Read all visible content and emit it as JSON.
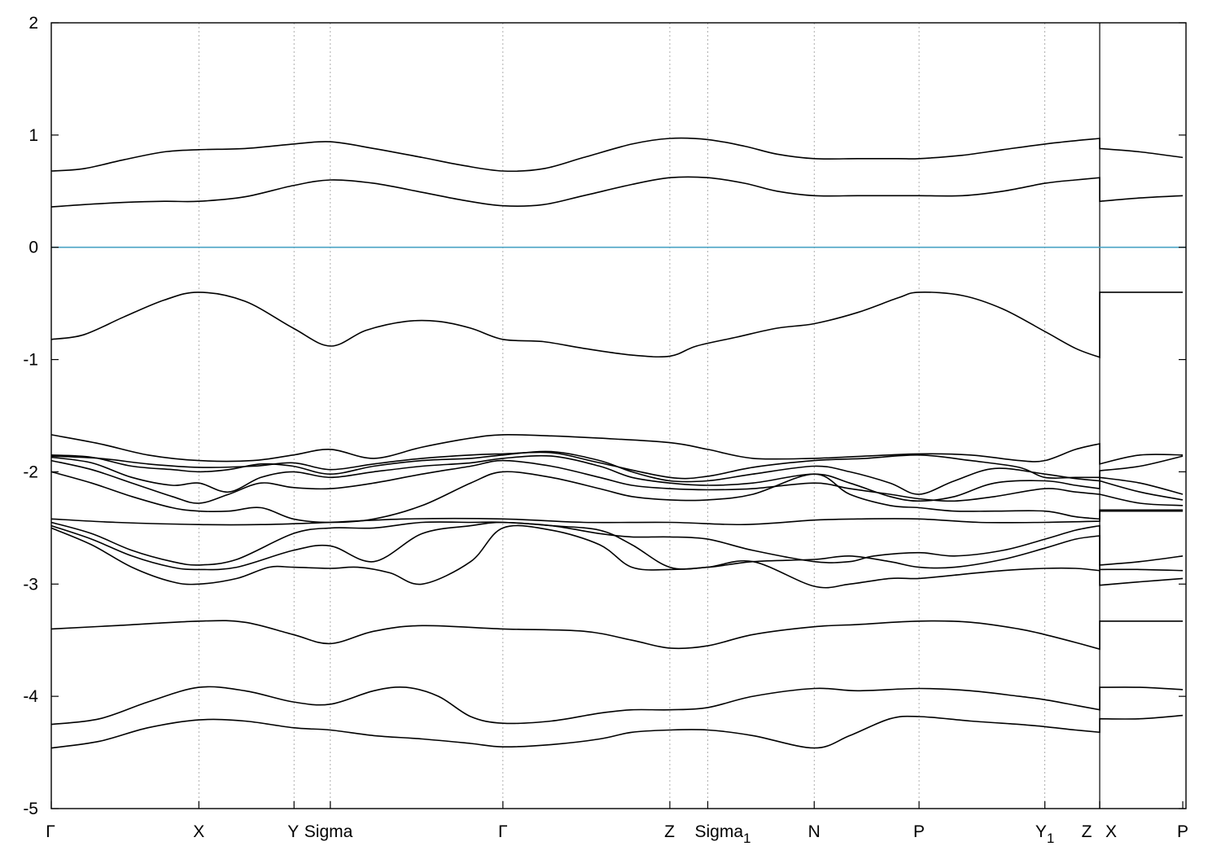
{
  "chart_data": {
    "type": "line",
    "ylim": [
      -5,
      2
    ],
    "yticks": [
      2,
      1,
      0,
      -1,
      -2,
      -3,
      -4,
      -5
    ],
    "xlim": [
      0,
      1407
    ],
    "kpoints": [
      {
        "x": 0,
        "label": "Γ"
      },
      {
        "x": 183,
        "label": "X"
      },
      {
        "x": 301,
        "label": "Y"
      },
      {
        "x": 346,
        "label": "Sigma"
      },
      {
        "x": 560,
        "label": "Γ"
      },
      {
        "x": 767,
        "label": "Z"
      },
      {
        "x": 814,
        "label": "Sigma",
        "sub": "1"
      },
      {
        "x": 946,
        "label": "N"
      },
      {
        "x": 1076,
        "label": "P"
      },
      {
        "x": 1232,
        "label": "Y",
        "sub": "1"
      },
      {
        "x": 1300,
        "label": "Z"
      },
      {
        "x": 1300,
        "label": "X"
      },
      {
        "x": 1403,
        "label": "P"
      }
    ],
    "fermi_level": 0,
    "series": [
      {
        "x": [
          0,
          40,
          90,
          140,
          183,
          240,
          300,
          346,
          400,
          460,
          510,
          560,
          610,
          660,
          720,
          767,
          814,
          860,
          900,
          946,
          1000,
          1050,
          1076,
          1130,
          1180,
          1232,
          1270,
          1300,
          1300,
          1350,
          1403
        ],
        "y": [
          0.68,
          0.7,
          0.78,
          0.85,
          0.87,
          0.88,
          0.92,
          0.94,
          0.88,
          0.8,
          0.73,
          0.68,
          0.7,
          0.8,
          0.92,
          0.97,
          0.96,
          0.9,
          0.83,
          0.79,
          0.79,
          0.79,
          0.79,
          0.82,
          0.87,
          0.92,
          0.95,
          0.97,
          0.88,
          0.85,
          0.8
        ]
      },
      {
        "x": [
          0,
          40,
          90,
          140,
          183,
          240,
          300,
          346,
          400,
          460,
          510,
          560,
          610,
          660,
          720,
          767,
          814,
          860,
          900,
          946,
          1000,
          1050,
          1076,
          1130,
          1180,
          1232,
          1270,
          1300,
          1300,
          1350,
          1403
        ],
        "y": [
          0.36,
          0.38,
          0.4,
          0.41,
          0.41,
          0.45,
          0.55,
          0.6,
          0.57,
          0.49,
          0.42,
          0.37,
          0.38,
          0.46,
          0.56,
          0.62,
          0.62,
          0.57,
          0.5,
          0.46,
          0.46,
          0.46,
          0.46,
          0.46,
          0.5,
          0.57,
          0.6,
          0.62,
          0.41,
          0.44,
          0.46
        ]
      },
      {
        "x": [
          0,
          40,
          90,
          140,
          183,
          240,
          300,
          346,
          390,
          440,
          480,
          520,
          560,
          610,
          660,
          720,
          767,
          800,
          850,
          900,
          946,
          1000,
          1050,
          1076,
          1130,
          1180,
          1232,
          1270,
          1300,
          1300,
          1350,
          1403
        ],
        "y": [
          -0.82,
          -0.78,
          -0.62,
          -0.47,
          -0.4,
          -0.48,
          -0.72,
          -0.88,
          -0.74,
          -0.66,
          -0.66,
          -0.72,
          -0.82,
          -0.84,
          -0.9,
          -0.96,
          -0.97,
          -0.88,
          -0.8,
          -0.72,
          -0.68,
          -0.58,
          -0.45,
          -0.4,
          -0.43,
          -0.55,
          -0.75,
          -0.9,
          -0.98,
          -0.4,
          -0.4,
          -0.4
        ]
      },
      {
        "x": [
          0,
          60,
          120,
          183,
          250,
          300,
          346,
          400,
          460,
          520,
          560,
          620,
          680,
          767,
          814,
          870,
          946,
          1010,
          1076,
          1140,
          1200,
          1232,
          1270,
          1300,
          1300,
          1350,
          1403
        ],
        "y": [
          -1.67,
          -1.75,
          -1.85,
          -1.9,
          -1.9,
          -1.85,
          -1.8,
          -1.88,
          -1.78,
          -1.7,
          -1.67,
          -1.68,
          -1.7,
          -1.74,
          -1.8,
          -1.88,
          -1.88,
          -1.86,
          -1.84,
          -1.85,
          -1.9,
          -1.9,
          -1.8,
          -1.75,
          -1.93,
          -1.85,
          -1.85
        ]
      },
      {
        "x": [
          0,
          60,
          120,
          183,
          250,
          300,
          346,
          400,
          460,
          520,
          560,
          620,
          680,
          767,
          814,
          870,
          946,
          1010,
          1076,
          1140,
          1200,
          1232,
          1270,
          1300,
          1300,
          1350,
          1403
        ],
        "y": [
          -1.86,
          -1.88,
          -1.93,
          -1.96,
          -1.95,
          -1.92,
          -1.98,
          -1.93,
          -1.88,
          -1.85,
          -1.84,
          -1.83,
          -1.92,
          -2.05,
          -2.04,
          -1.96,
          -1.9,
          -1.88,
          -1.85,
          -1.9,
          -1.96,
          -2.05,
          -2.05,
          -2.05,
          -1.99,
          -1.95,
          -1.86
        ]
      },
      {
        "x": [
          0,
          50,
          100,
          150,
          183,
          220,
          260,
          300,
          346,
          400,
          460,
          520,
          560,
          620,
          680,
          720,
          767,
          814,
          870,
          946,
          990,
          1040,
          1076,
          1120,
          1170,
          1232,
          1270,
          1300,
          1300,
          1350,
          1403
        ],
        "y": [
          -1.85,
          -1.87,
          -1.95,
          -1.98,
          -2.0,
          -1.98,
          -1.93,
          -1.95,
          -2.02,
          -1.95,
          -1.9,
          -1.88,
          -1.85,
          -1.82,
          -1.9,
          -2.0,
          -2.08,
          -2.08,
          -2.02,
          -1.95,
          -2.0,
          -2.1,
          -2.2,
          -2.08,
          -1.97,
          -2.02,
          -2.06,
          -2.08,
          -2.05,
          -2.1,
          -2.2
        ]
      },
      {
        "x": [
          0,
          50,
          100,
          150,
          183,
          220,
          260,
          300,
          346,
          400,
          460,
          520,
          560,
          620,
          680,
          720,
          767,
          814,
          870,
          946,
          990,
          1040,
          1076,
          1120,
          1170,
          1232,
          1270,
          1300,
          1300,
          1350,
          1403
        ],
        "y": [
          -1.87,
          -1.92,
          -2.05,
          -2.12,
          -2.1,
          -2.18,
          -2.05,
          -2.0,
          -2.05,
          -2.0,
          -1.95,
          -1.92,
          -1.88,
          -1.86,
          -1.95,
          -2.05,
          -2.1,
          -2.12,
          -2.1,
          -2.02,
          -2.1,
          -2.22,
          -2.26,
          -2.22,
          -2.1,
          -2.08,
          -2.12,
          -2.15,
          -2.08,
          -2.18,
          -2.25
        ]
      },
      {
        "x": [
          0,
          50,
          100,
          150,
          183,
          220,
          260,
          300,
          346,
          400,
          460,
          520,
          560,
          620,
          680,
          720,
          767,
          814,
          870,
          946,
          990,
          1040,
          1076,
          1120,
          1170,
          1232,
          1270,
          1300,
          1300,
          1350,
          1403
        ],
        "y": [
          -1.9,
          -1.98,
          -2.1,
          -2.22,
          -2.28,
          -2.2,
          -2.1,
          -2.14,
          -2.15,
          -2.1,
          -2.02,
          -1.95,
          -1.9,
          -1.95,
          -2.05,
          -2.12,
          -2.15,
          -2.16,
          -2.15,
          -2.1,
          -2.15,
          -2.2,
          -2.24,
          -2.26,
          -2.22,
          -2.15,
          -2.18,
          -2.2,
          -2.2,
          -2.28,
          -2.3
        ]
      },
      {
        "x": [
          0,
          50,
          100,
          150,
          183,
          220,
          260,
          300,
          346,
          400,
          460,
          520,
          560,
          620,
          680,
          720,
          767,
          814,
          870,
          946,
          990,
          1040,
          1076,
          1120,
          1170,
          1232,
          1270,
          1300,
          1300,
          1350,
          1403
        ],
        "y": [
          -2.0,
          -2.1,
          -2.22,
          -2.32,
          -2.35,
          -2.35,
          -2.32,
          -2.42,
          -2.45,
          -2.42,
          -2.3,
          -2.1,
          -2.0,
          -2.05,
          -2.15,
          -2.22,
          -2.25,
          -2.25,
          -2.2,
          -2.02,
          -2.2,
          -2.3,
          -2.32,
          -2.35,
          -2.35,
          -2.35,
          -2.4,
          -2.42,
          -2.35,
          -2.35,
          -2.35
        ]
      },
      {
        "x": [
          0,
          80,
          183,
          260,
          346,
          440,
          560,
          660,
          767,
          860,
          946,
          1000,
          1076,
          1150,
          1232,
          1300,
          1300,
          1350,
          1403
        ],
        "y": [
          -2.42,
          -2.45,
          -2.47,
          -2.47,
          -2.45,
          -2.42,
          -2.42,
          -2.45,
          -2.45,
          -2.47,
          -2.43,
          -2.42,
          -2.42,
          -2.45,
          -2.45,
          -2.44,
          -2.34,
          -2.34,
          -2.34
        ]
      },
      {
        "x": [
          0,
          50,
          100,
          150,
          183,
          230,
          300,
          346,
          400,
          460,
          520,
          560,
          620,
          680,
          720,
          767,
          814,
          870,
          946,
          990,
          1020,
          1076,
          1120,
          1180,
          1232,
          1270,
          1300,
          1300,
          1350,
          1403
        ],
        "y": [
          -2.45,
          -2.55,
          -2.7,
          -2.8,
          -2.83,
          -2.78,
          -2.55,
          -2.5,
          -2.5,
          -2.45,
          -2.45,
          -2.45,
          -2.48,
          -2.55,
          -2.58,
          -2.58,
          -2.6,
          -2.7,
          -2.8,
          -2.8,
          -2.75,
          -2.72,
          -2.75,
          -2.7,
          -2.6,
          -2.52,
          -2.48,
          -2.83,
          -2.8,
          -2.75
        ]
      },
      {
        "x": [
          0,
          50,
          100,
          150,
          183,
          230,
          300,
          346,
          400,
          460,
          520,
          560,
          620,
          680,
          720,
          767,
          814,
          870,
          946,
          990,
          1040,
          1076,
          1120,
          1180,
          1232,
          1270,
          1300,
          1300,
          1350,
          1403
        ],
        "y": [
          -2.48,
          -2.6,
          -2.75,
          -2.85,
          -2.87,
          -2.85,
          -2.7,
          -2.66,
          -2.8,
          -2.55,
          -2.48,
          -2.45,
          -2.48,
          -2.52,
          -2.65,
          -2.85,
          -2.85,
          -2.8,
          -2.78,
          -2.75,
          -2.8,
          -2.85,
          -2.85,
          -2.78,
          -2.68,
          -2.6,
          -2.57,
          -2.87,
          -2.87,
          -2.88
        ]
      },
      {
        "x": [
          0,
          50,
          100,
          150,
          183,
          230,
          270,
          300,
          346,
          380,
          420,
          460,
          520,
          560,
          620,
          680,
          720,
          767,
          814,
          870,
          946,
          990,
          1040,
          1076,
          1120,
          1180,
          1232,
          1270,
          1300,
          1300,
          1350,
          1403
        ],
        "y": [
          -2.5,
          -2.65,
          -2.85,
          -2.98,
          -3.0,
          -2.95,
          -2.85,
          -2.85,
          -2.86,
          -2.85,
          -2.9,
          -3.0,
          -2.8,
          -2.5,
          -2.52,
          -2.65,
          -2.85,
          -2.87,
          -2.85,
          -2.8,
          -3.02,
          -3.0,
          -2.95,
          -2.95,
          -2.92,
          -2.88,
          -2.86,
          -2.86,
          -2.88,
          -3.01,
          -2.98,
          -2.95
        ]
      },
      {
        "x": [
          0,
          80,
          183,
          240,
          300,
          346,
          400,
          460,
          560,
          660,
          720,
          767,
          814,
          870,
          946,
          1000,
          1076,
          1140,
          1200,
          1232,
          1270,
          1300,
          1300,
          1350,
          1403
        ],
        "y": [
          -3.4,
          -3.37,
          -3.33,
          -3.34,
          -3.45,
          -3.53,
          -3.42,
          -3.37,
          -3.4,
          -3.42,
          -3.5,
          -3.57,
          -3.55,
          -3.45,
          -3.38,
          -3.36,
          -3.33,
          -3.34,
          -3.4,
          -3.45,
          -3.52,
          -3.58,
          -3.33,
          -3.33,
          -3.33
        ]
      },
      {
        "x": [
          0,
          60,
          120,
          183,
          240,
          300,
          346,
          400,
          440,
          480,
          520,
          560,
          620,
          680,
          720,
          767,
          814,
          870,
          946,
          1000,
          1076,
          1140,
          1200,
          1232,
          1270,
          1300,
          1300,
          1350,
          1403
        ],
        "y": [
          -4.25,
          -4.2,
          -4.05,
          -3.92,
          -3.95,
          -4.05,
          -4.07,
          -3.95,
          -3.92,
          -4.0,
          -4.18,
          -4.24,
          -4.22,
          -4.15,
          -4.12,
          -4.12,
          -4.1,
          -4.0,
          -3.93,
          -3.95,
          -3.93,
          -3.95,
          -4.0,
          -4.03,
          -4.08,
          -4.12,
          -3.92,
          -3.92,
          -3.94
        ]
      },
      {
        "x": [
          0,
          60,
          120,
          183,
          240,
          300,
          346,
          400,
          460,
          520,
          560,
          620,
          680,
          720,
          767,
          814,
          870,
          946,
          990,
          1040,
          1076,
          1140,
          1200,
          1232,
          1270,
          1300,
          1300,
          1350,
          1403
        ],
        "y": [
          -4.46,
          -4.4,
          -4.28,
          -4.21,
          -4.22,
          -4.28,
          -4.3,
          -4.35,
          -4.38,
          -4.42,
          -4.45,
          -4.43,
          -4.38,
          -4.32,
          -4.3,
          -4.3,
          -4.35,
          -4.46,
          -4.35,
          -4.2,
          -4.18,
          -4.22,
          -4.25,
          -4.27,
          -4.3,
          -4.32,
          -4.2,
          -4.2,
          -4.17
        ]
      }
    ]
  }
}
